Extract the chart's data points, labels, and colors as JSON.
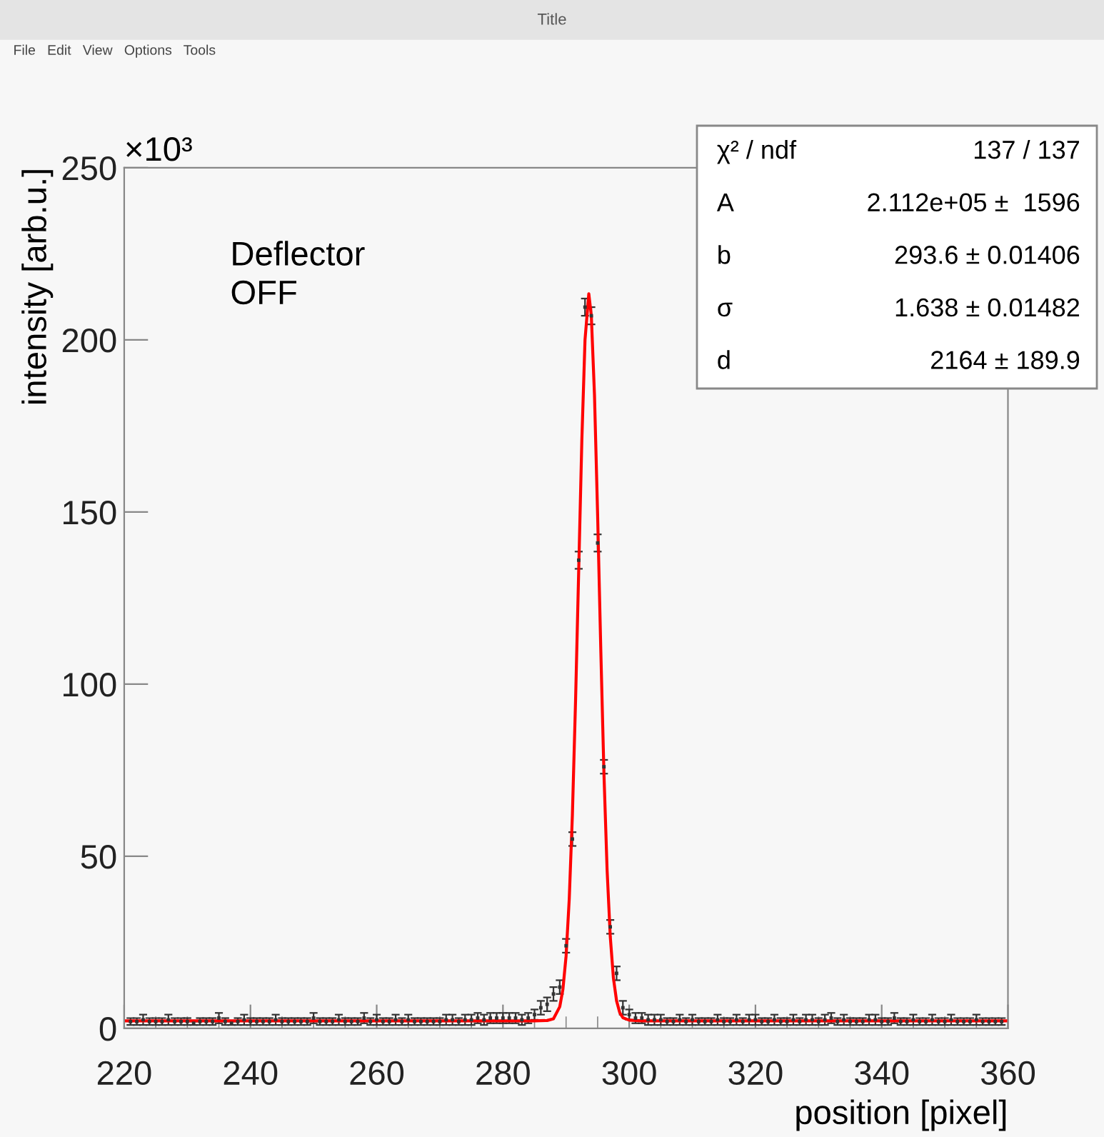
{
  "chart_data": {
    "type": "scatter",
    "title": "Title",
    "subtitle": "File   Edit   View   Options   Tools",
    "xlabel": "position [pixel]",
    "ylabel": "intensity [arb.u.]",
    "annotations": [
      "×10³",
      "Deflector\nOFF",
      "χ² / ndf",
      "137 / 137",
      "A",
      "2.112e+05 ±  1596",
      "b",
      "293.6 ± 0.01406",
      "σ",
      "1.638 ± 0.01482",
      "d",
      "2164 ± 189.9"
    ],
    "xlim": [
      220,
      360
    ],
    "xticks": [
      220,
      240,
      260,
      280,
      300,
      320,
      340,
      360
    ],
    "ylim": [
      0,
      250
    ],
    "yticks": [
      0,
      50,
      100,
      150,
      200,
      250
    ],
    "grid": false,
    "legend": false,
    "series": [
      {
        "color": "#333333",
        "marker": "square",
        "x": [
          221,
          222,
          223,
          224,
          225,
          226,
          227,
          228,
          229,
          230,
          231,
          232,
          233,
          234,
          235,
          236,
          237,
          238,
          239,
          240,
          241,
          242,
          243,
          244,
          245,
          246,
          247,
          248,
          249,
          250,
          251,
          252,
          253,
          254,
          255,
          256,
          257,
          258,
          259,
          260,
          261,
          262,
          263,
          264,
          265,
          266,
          267,
          268,
          269,
          270,
          271,
          272,
          273,
          274,
          275,
          276,
          277,
          278,
          279,
          280,
          281,
          282,
          283,
          284,
          285,
          286,
          287,
          288,
          289,
          290,
          291,
          292,
          293,
          294,
          295,
          296,
          297,
          298,
          299,
          300,
          301,
          302,
          303,
          304,
          305,
          306,
          307,
          308,
          309,
          310,
          311,
          312,
          313,
          314,
          315,
          316,
          317,
          318,
          319,
          320,
          321,
          322,
          323,
          324,
          325,
          326,
          327,
          328,
          329,
          330,
          331,
          332,
          333,
          334,
          335,
          336,
          337,
          338,
          339,
          340,
          341,
          342,
          343,
          344,
          345,
          346,
          347,
          348,
          349,
          350,
          351,
          352,
          353,
          354,
          355,
          356,
          357,
          358,
          359
        ],
        "values": [
          2,
          2,
          2.5,
          2,
          2,
          2,
          2.5,
          2,
          2,
          2,
          1.5,
          2,
          2,
          2,
          3,
          2,
          1.5,
          2,
          2.5,
          2,
          2,
          2,
          2,
          2.5,
          2,
          2,
          2,
          2,
          2,
          3,
          2,
          2,
          2,
          2.5,
          2,
          2,
          2,
          3,
          2,
          2.5,
          2,
          2,
          2.5,
          2,
          2.5,
          2,
          2,
          2,
          2,
          2,
          2.5,
          2.5,
          2,
          2.5,
          2.5,
          3,
          2.5,
          3,
          3,
          3,
          3,
          3,
          2.5,
          3,
          4,
          6,
          7,
          10,
          12,
          24,
          55,
          136,
          209.5,
          207,
          141,
          76,
          29.5,
          16,
          6,
          4,
          3,
          3,
          2.5,
          2.5,
          2.5,
          2,
          2,
          2.5,
          2,
          2.5,
          2,
          2,
          2,
          2.5,
          2,
          2,
          2.5,
          2,
          2.5,
          2.5,
          2,
          2,
          2.5,
          2,
          2,
          2.5,
          2,
          2.5,
          2.5,
          2,
          2.5,
          3,
          2,
          2.5,
          2,
          2,
          2,
          2.5,
          2.5,
          2,
          2,
          3,
          2,
          2,
          2.5,
          2,
          2,
          2.5,
          2,
          2,
          2.5,
          2,
          2,
          2,
          2.5,
          2,
          2,
          2,
          2
        ],
        "errors": [
          1,
          1,
          1.5,
          1,
          1,
          1,
          1.5,
          1,
          1,
          1,
          0.5,
          1,
          1,
          1,
          1.5,
          1,
          0.5,
          1,
          1.5,
          1,
          1,
          1,
          1,
          1.5,
          1,
          1,
          1,
          1,
          1,
          1.5,
          1,
          1,
          1,
          1.5,
          1,
          1,
          1,
          1.5,
          1,
          1.5,
          1,
          1,
          1.5,
          1,
          1.5,
          1,
          1,
          1,
          1,
          1,
          1.5,
          1.5,
          1,
          1.5,
          1.5,
          1.5,
          1.5,
          1.5,
          1.5,
          1.5,
          1.5,
          1.5,
          1.5,
          1.5,
          1.5,
          2,
          2,
          2,
          2,
          2,
          2,
          2.5,
          2.5,
          2.5,
          2.5,
          2,
          2,
          2,
          2,
          1.5,
          1.5,
          1.5,
          1.5,
          1.5,
          1.5,
          1,
          1,
          1.5,
          1,
          1.5,
          1,
          1,
          1,
          1.5,
          1,
          1,
          1.5,
          1,
          1.5,
          1.5,
          1,
          1,
          1.5,
          1,
          1,
          1.5,
          1,
          1.5,
          1.5,
          1,
          1.5,
          1.5,
          1,
          1.5,
          1,
          1,
          1,
          1.5,
          1.5,
          1,
          1,
          1.5,
          1,
          1,
          1.5,
          1,
          1,
          1.5,
          1,
          1,
          1.5,
          1,
          1,
          1,
          1.5,
          1,
          1,
          1,
          1
        ]
      },
      {
        "type": "line",
        "color": "#ff0000",
        "marker": "none",
        "line_style": "solid",
        "x": [
          220,
          250,
          280,
          285,
          287,
          288,
          289,
          289.5,
          290,
          290.5,
          291,
          291.5,
          292,
          292.5,
          293,
          293.6,
          294,
          294.5,
          295,
          295.5,
          296,
          296.5,
          297,
          297.5,
          298,
          298.5,
          299,
          300,
          302,
          330,
          360
        ],
        "values": [
          2.2,
          2.2,
          2.2,
          2.2,
          2.3,
          2.8,
          6.3,
          11.4,
          21,
          37.5,
          62,
          95,
          133,
          171,
          200,
          213.4,
          207,
          184,
          149,
          110,
          74,
          46,
          26.7,
          14.6,
          8,
          4.6,
          3.1,
          2.4,
          2.2,
          2.2,
          2.2
        ]
      }
    ]
  }
}
